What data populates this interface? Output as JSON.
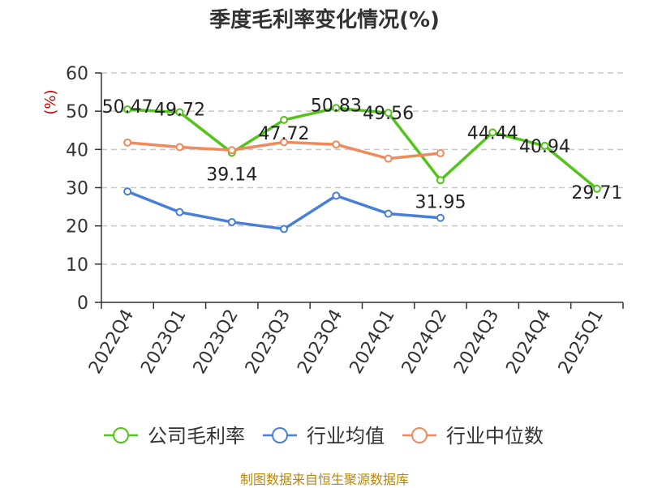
{
  "chart_data": {
    "type": "line",
    "title": "季度毛利率变化情况(%)",
    "ylabel": "(%)",
    "xlabel": "",
    "categories": [
      "2022Q4",
      "2023Q1",
      "2023Q2",
      "2023Q3",
      "2023Q4",
      "2024Q1",
      "2024Q2",
      "2024Q3",
      "2024Q4",
      "2025Q1"
    ],
    "ylim": [
      0,
      60
    ],
    "yticks": [
      0,
      10,
      20,
      30,
      40,
      50,
      60
    ],
    "grid": true,
    "legend_position": "bottom",
    "series": [
      {
        "name": "公司毛利率",
        "color": "#52c41a",
        "labels": true,
        "values": [
          50.47,
          49.72,
          39.14,
          47.72,
          50.83,
          49.56,
          31.95,
          44.44,
          40.94,
          29.71
        ]
      },
      {
        "name": "行业均值",
        "color": "#4a7fd6",
        "labels": false,
        "values": [
          29.0,
          23.6,
          21.0,
          19.2,
          27.9,
          23.2,
          22.1,
          null,
          null,
          null
        ]
      },
      {
        "name": "行业中位数",
        "color": "#f08a5d",
        "labels": false,
        "values": [
          41.8,
          40.6,
          39.8,
          41.9,
          41.3,
          37.6,
          39.0,
          null,
          null,
          null
        ]
      }
    ]
  },
  "source_note": "制图数据来自恒生聚源数据库"
}
